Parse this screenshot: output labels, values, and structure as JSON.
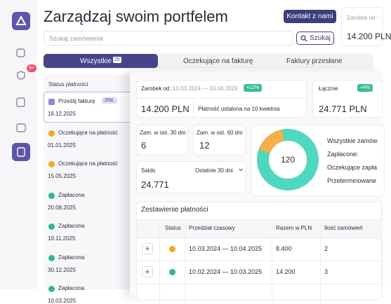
{
  "sidebar": {
    "badge": "9+"
  },
  "header": {
    "title": "Zarządzaj swoim portfelem",
    "contact_button": "Kontakt z nami",
    "search_placeholder": "Szukaj zamówienia",
    "search_button": "Szukaj"
  },
  "side_card": {
    "label": "Zarobek od :",
    "amount": "14.200 PLN"
  },
  "tabs": [
    {
      "label": "Wszystkie",
      "badge": "25"
    },
    {
      "label": "Oczekujące na fakturę"
    },
    {
      "label": "Faktury przesłane"
    }
  ],
  "list": {
    "header": "Status płatności",
    "items": [
      {
        "status": "Prześlij fakturę",
        "badge": "20d.",
        "date": "16.12.2025"
      },
      {
        "status": "Oczekujące na płatność",
        "date": "01.01.2025"
      },
      {
        "status": "Oczekujące na płatność",
        "date": "15.05.2025"
      },
      {
        "status": "Zapłacona",
        "date": "20.08.2025"
      },
      {
        "status": "Zapłacona",
        "date": "10.11.2025"
      },
      {
        "status": "Zapłacona",
        "date": "30.12.2025"
      },
      {
        "status": "Zapłacona",
        "date": "10.03.2025"
      }
    ]
  },
  "earnings": {
    "label": "Zarobek od :",
    "range": "10.03.2024 — 10.04.2025",
    "change": "+12%",
    "amount": "14.200 PLN",
    "note": "Płatność ustalona na 10 kwietnia"
  },
  "total": {
    "label": "Łącznie",
    "change": "+4%",
    "amount": "24.771 PLN"
  },
  "orders30": {
    "label": "Zam. w ost. 30 dni",
    "value": "6"
  },
  "orders60": {
    "label": "Zam. w ost. 60 dni",
    "value": "12"
  },
  "balance": {
    "label": "Saldo",
    "period": "Ostatnie 30 dni",
    "amount": "24.771"
  },
  "donut": {
    "center": "120",
    "legend": [
      "Wszystkie zamów",
      "Zapłacone:",
      "Oczekujące zapła",
      "Przeterminowane"
    ]
  },
  "table": {
    "title": "Zestawienie płatności",
    "columns": [
      "Status",
      "Przedział czasowy",
      "Razem w PLN",
      "Ilość zamówień"
    ],
    "rows": [
      {
        "range": "10.03.2024 — 10.04.2025",
        "total": "8.400",
        "count": "2"
      },
      {
        "range": "10.02.2024 — 10.03.2025",
        "total": "14.200",
        "count": "3"
      }
    ]
  }
}
